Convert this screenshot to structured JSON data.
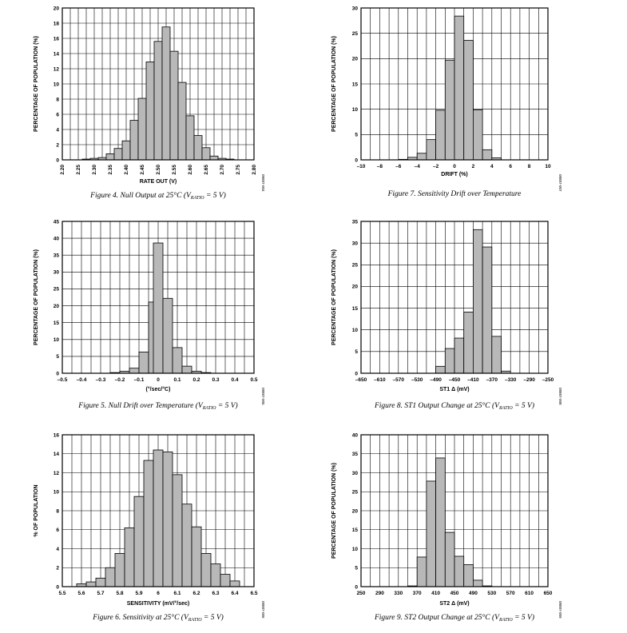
{
  "chart_data": [
    {
      "type": "bar",
      "caption": {
        "pre": "Figure 4. Null Output at 25°C (V",
        "sub": "RATIO",
        "post": " = 5 V)"
      },
      "xlabel": "RATE OUT (V)",
      "ylabel": "PERCENTAGE OF POPULATION (%)",
      "figure_id": "08887-004",
      "xlim": [
        2.2,
        2.8
      ],
      "ylim": [
        0,
        20
      ],
      "yticks": [
        0,
        2,
        4,
        6,
        8,
        10,
        12,
        14,
        16,
        18,
        20
      ],
      "xticks": [
        2.2,
        2.25,
        2.3,
        2.35,
        2.4,
        2.45,
        2.5,
        2.55,
        2.6,
        2.65,
        2.7,
        2.75,
        2.8
      ],
      "xtick_labels": [
        "2.20",
        "2.25",
        "2.30",
        "2.35",
        "2.40",
        "2.45",
        "2.50",
        "2.55",
        "2.60",
        "2.65",
        "2.70",
        "2.75",
        "2.80"
      ],
      "xtick_rotate": true,
      "bin_width": 0.025,
      "grid": true,
      "bins": [
        {
          "x": 2.275,
          "y": 0.1
        },
        {
          "x": 2.3,
          "y": 0.2
        },
        {
          "x": 2.325,
          "y": 0.3
        },
        {
          "x": 2.35,
          "y": 0.8
        },
        {
          "x": 2.375,
          "y": 1.5
        },
        {
          "x": 2.4,
          "y": 2.5
        },
        {
          "x": 2.425,
          "y": 5.2
        },
        {
          "x": 2.45,
          "y": 8.1
        },
        {
          "x": 2.475,
          "y": 12.9
        },
        {
          "x": 2.5,
          "y": 15.6
        },
        {
          "x": 2.525,
          "y": 17.5
        },
        {
          "x": 2.55,
          "y": 14.3
        },
        {
          "x": 2.575,
          "y": 10.2
        },
        {
          "x": 2.6,
          "y": 5.8
        },
        {
          "x": 2.625,
          "y": 3.2
        },
        {
          "x": 2.65,
          "y": 1.6
        },
        {
          "x": 2.675,
          "y": 0.5
        },
        {
          "x": 2.7,
          "y": 0.2
        },
        {
          "x": 2.725,
          "y": 0.1
        }
      ]
    },
    {
      "type": "bar",
      "caption": {
        "pre": "Figure 7. Sensitivity Drift over Temperature",
        "sub": "",
        "post": ""
      },
      "xlabel": "DRIFT (%)",
      "ylabel": "PERCENTAGE OF POPULATION (%)",
      "figure_id": "08887-007",
      "xlim": [
        -10,
        10
      ],
      "ylim": [
        0,
        30
      ],
      "yticks": [
        0,
        5,
        10,
        15,
        20,
        25,
        30
      ],
      "xticks": [
        -10,
        -8,
        -6,
        -4,
        -2,
        0,
        2,
        4,
        6,
        8,
        10
      ],
      "xtick_labels": [
        "–10",
        "–8",
        "–6",
        "–4",
        "–2",
        "0",
        "2",
        "4",
        "6",
        "8",
        "10"
      ],
      "xtick_rotate": false,
      "bin_width": 1,
      "grid": true,
      "bins": [
        {
          "x": -5.5,
          "y": 0.1
        },
        {
          "x": -4.5,
          "y": 0.5
        },
        {
          "x": -3.5,
          "y": 1.3
        },
        {
          "x": -2.5,
          "y": 4.0
        },
        {
          "x": -1.5,
          "y": 9.8
        },
        {
          "x": -0.5,
          "y": 19.7
        },
        {
          "x": 0.5,
          "y": 28.4
        },
        {
          "x": 1.5,
          "y": 23.6
        },
        {
          "x": 2.5,
          "y": 9.9
        },
        {
          "x": 3.5,
          "y": 2.0
        },
        {
          "x": 4.5,
          "y": 0.4
        }
      ]
    },
    {
      "type": "bar",
      "caption": {
        "pre": "Figure 5. Null Drift over Temperature (V",
        "sub": "RATIO",
        "post": " = 5 V)"
      },
      "xlabel": "(°/sec/°C)",
      "ylabel": "PERCENTAGE OF POPULATION (%)",
      "figure_id": "08887-005",
      "xlim": [
        -0.5,
        0.5
      ],
      "ylim": [
        0,
        45
      ],
      "yticks": [
        0,
        5,
        10,
        15,
        20,
        25,
        30,
        35,
        40,
        45
      ],
      "xticks": [
        -0.5,
        -0.4,
        -0.3,
        -0.2,
        -0.1,
        0,
        0.1,
        0.2,
        0.3,
        0.4,
        0.5
      ],
      "xtick_labels": [
        "–0.5",
        "–0.4",
        "–0.3",
        "–0.2",
        "–0.1",
        "0",
        "0.1",
        "0.2",
        "0.3",
        "0.4",
        "0.5"
      ],
      "xtick_rotate": false,
      "bin_width": 0.05,
      "grid": true,
      "bins": [
        {
          "x": -0.225,
          "y": 0.2
        },
        {
          "x": -0.175,
          "y": 0.6
        },
        {
          "x": -0.125,
          "y": 1.5
        },
        {
          "x": -0.075,
          "y": 6.3
        },
        {
          "x": -0.025,
          "y": 21.1
        },
        {
          "x": 0.0,
          "y": 38.6
        },
        {
          "x": 0.05,
          "y": 22.2
        },
        {
          "x": 0.1,
          "y": 7.6
        },
        {
          "x": 0.15,
          "y": 2.1
        },
        {
          "x": 0.2,
          "y": 0.6
        },
        {
          "x": 0.25,
          "y": 0.2
        }
      ]
    },
    {
      "type": "bar",
      "caption": {
        "pre": "Figure 8. ST1 Output Change at 25°C (V",
        "sub": "RATIO",
        "post": " = 5 V)"
      },
      "xlabel": "ST1 Δ (mV)",
      "ylabel": "PERCENTAGE OF POPULATION (%)",
      "figure_id": "08887-008",
      "xlim": [
        -650,
        -250
      ],
      "ylim": [
        0,
        35
      ],
      "yticks": [
        0,
        5,
        10,
        15,
        20,
        25,
        30,
        35
      ],
      "xticks": [
        -650,
        -610,
        -570,
        -530,
        -490,
        -450,
        -410,
        -370,
        -330,
        -290,
        -250
      ],
      "xtick_labels": [
        "–650",
        "–610",
        "–570",
        "–530",
        "–490",
        "–450",
        "–410",
        "–370",
        "–330",
        "–290",
        "–250"
      ],
      "xtick_rotate": false,
      "bin_width": 20,
      "grid": true,
      "bins": [
        {
          "x": -480,
          "y": 1.6
        },
        {
          "x": -460,
          "y": 5.7
        },
        {
          "x": -440,
          "y": 8.1
        },
        {
          "x": -420,
          "y": 14.1
        },
        {
          "x": -400,
          "y": 33.1
        },
        {
          "x": -380,
          "y": 29.1
        },
        {
          "x": -360,
          "y": 8.5
        },
        {
          "x": -340,
          "y": 0.5
        }
      ]
    },
    {
      "type": "bar",
      "caption": {
        "pre": "Figure 6. Sensitivity at 25°C (V",
        "sub": "RATIO",
        "post": " = 5 V)"
      },
      "xlabel": "SENSITIVITY (mV/°/sec)",
      "ylabel": "% OF POPULATION",
      "figure_id": "08887-006",
      "xlim": [
        5.5,
        6.5
      ],
      "ylim": [
        0,
        16
      ],
      "yticks": [
        0,
        2,
        4,
        6,
        8,
        10,
        12,
        14,
        16
      ],
      "xticks": [
        5.5,
        5.6,
        5.7,
        5.8,
        5.9,
        6.0,
        6.1,
        6.2,
        6.3,
        6.4,
        6.5
      ],
      "xtick_labels": [
        "5.5",
        "5.6",
        "5.7",
        "5.8",
        "5.9",
        "6",
        "6.1",
        "6.2",
        "6.3",
        "6.4",
        "6.5"
      ],
      "xtick_rotate": false,
      "bin_width": 0.05,
      "grid": true,
      "bins": [
        {
          "x": 5.6,
          "y": 0.3
        },
        {
          "x": 5.65,
          "y": 0.5
        },
        {
          "x": 5.7,
          "y": 0.9
        },
        {
          "x": 5.75,
          "y": 2.0
        },
        {
          "x": 5.8,
          "y": 3.5
        },
        {
          "x": 5.85,
          "y": 6.2
        },
        {
          "x": 5.9,
          "y": 9.5
        },
        {
          "x": 5.95,
          "y": 13.3
        },
        {
          "x": 6.0,
          "y": 14.4
        },
        {
          "x": 6.05,
          "y": 14.2
        },
        {
          "x": 6.1,
          "y": 11.8
        },
        {
          "x": 6.15,
          "y": 8.7
        },
        {
          "x": 6.2,
          "y": 6.3
        },
        {
          "x": 6.25,
          "y": 3.5
        },
        {
          "x": 6.3,
          "y": 2.4
        },
        {
          "x": 6.35,
          "y": 1.3
        },
        {
          "x": 6.4,
          "y": 0.6
        }
      ]
    },
    {
      "type": "bar",
      "caption": {
        "pre": "Figure 9. ST2 Output Change at 25°C (V",
        "sub": "RATIO",
        "post": " = 5 V)"
      },
      "xlabel": "ST2 Δ (mV)",
      "ylabel": "PERCENTAGE OF POPULATION (%)",
      "figure_id": "08887-009",
      "xlim": [
        250,
        650
      ],
      "ylim": [
        0,
        40
      ],
      "yticks": [
        0,
        5,
        10,
        15,
        20,
        25,
        30,
        35,
        40
      ],
      "xticks": [
        250,
        290,
        330,
        370,
        410,
        450,
        490,
        530,
        570,
        610,
        650
      ],
      "xtick_labels": [
        "250",
        "290",
        "330",
        "370",
        "410",
        "450",
        "490",
        "530",
        "570",
        "610",
        "650"
      ],
      "xtick_rotate": false,
      "bin_width": 20,
      "grid": true,
      "bins": [
        {
          "x": 360,
          "y": 0.2
        },
        {
          "x": 380,
          "y": 7.8
        },
        {
          "x": 400,
          "y": 27.8
        },
        {
          "x": 420,
          "y": 33.9
        },
        {
          "x": 440,
          "y": 14.3
        },
        {
          "x": 460,
          "y": 8.0
        },
        {
          "x": 480,
          "y": 5.8
        },
        {
          "x": 500,
          "y": 1.7
        },
        {
          "x": 520,
          "y": 0.2
        }
      ]
    }
  ]
}
